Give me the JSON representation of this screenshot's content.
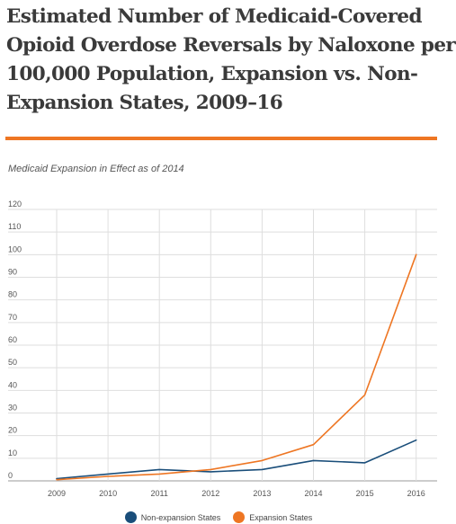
{
  "title": "Estimated Number of Medicaid-Covered\nOpioid Overdose Reversals by Naloxone per\n100,000 Population, Expansion vs. Non-\nExpansion States, 2009–16",
  "subtitle": "Medicaid Expansion in Effect as of 2014",
  "colors": {
    "accent_rule": "#ee7623",
    "non_expansion": "#1a4e7a",
    "expansion": "#ee7623"
  },
  "chart_data": {
    "type": "line",
    "title": "Estimated Number of Medicaid-Covered Opioid Overdose Reversals by Naloxone per 100,000 Population, Expansion vs. Non-Expansion States, 2009–16",
    "subtitle": "Medicaid Expansion in Effect as of 2014",
    "xlabel": "",
    "ylabel": "",
    "x": [
      "2009",
      "2010",
      "2011",
      "2012",
      "2013",
      "2014",
      "2015",
      "2016"
    ],
    "y_ticks": [
      "0",
      "10",
      "20",
      "30",
      "40",
      "50",
      "60",
      "70",
      "80",
      "90",
      "100",
      "110",
      "120"
    ],
    "ylim": [
      0,
      120
    ],
    "grid": true,
    "legend_position": "bottom",
    "series": [
      {
        "name": "Non-expansion States",
        "color": "#1a4e7a",
        "values": [
          1,
          3,
          5,
          4,
          5,
          9,
          8,
          18
        ]
      },
      {
        "name": "Expansion States",
        "color": "#ee7623",
        "values": [
          0.5,
          2,
          3,
          5,
          9,
          16,
          38,
          100
        ]
      }
    ]
  }
}
